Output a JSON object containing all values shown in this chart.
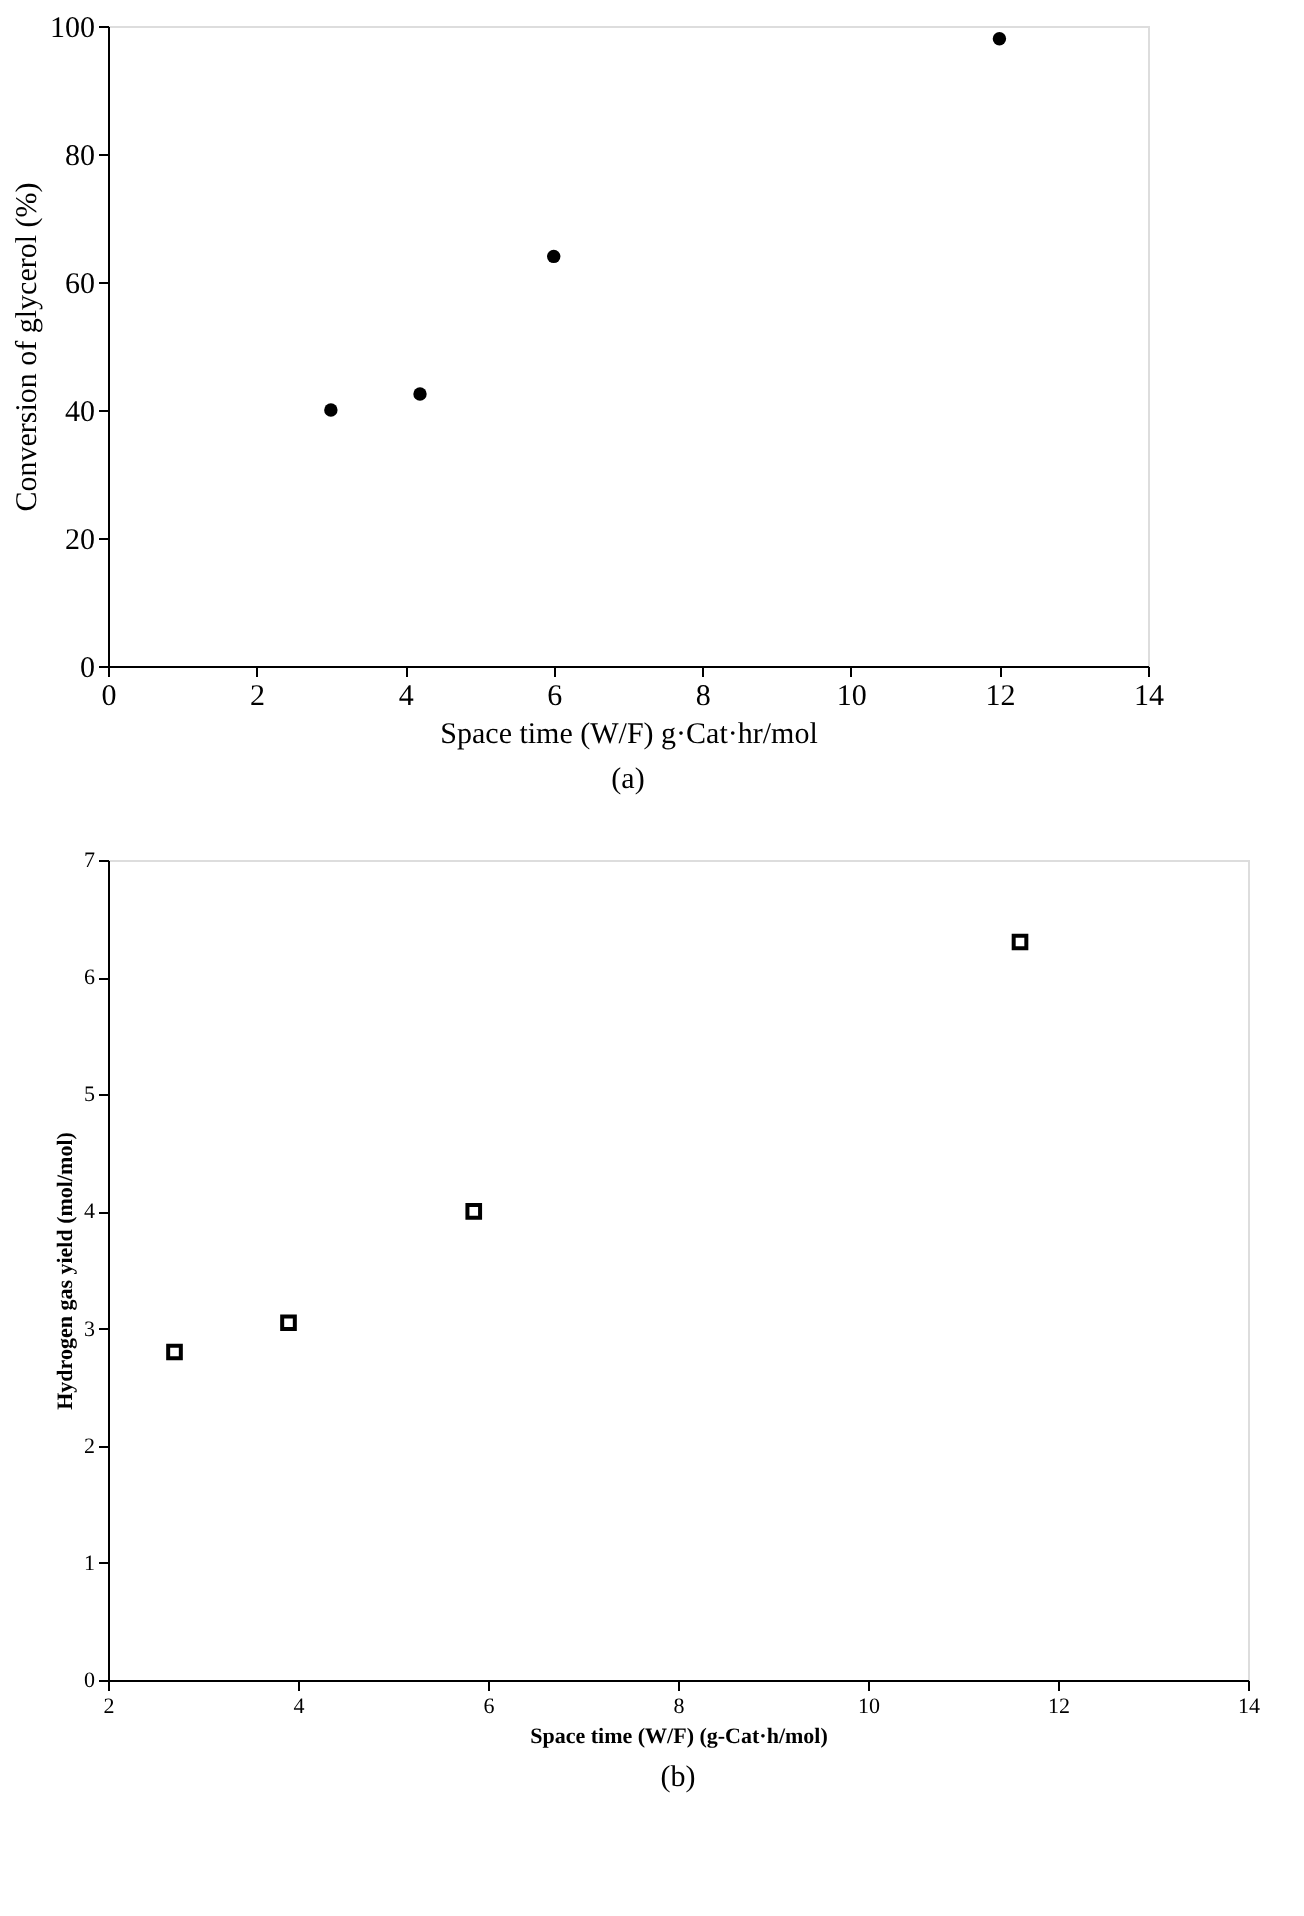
{
  "chart_data": [
    {
      "type": "scatter",
      "xlabel": "Space time (W/F) g·Cat·hr/mol",
      "ylabel": "Conversion of glycerol (%)",
      "x": [
        3,
        4.2,
        6,
        12
      ],
      "series": [
        {
          "color": "#000000",
          "values": [
            40,
            42.5,
            64,
            98
          ],
          "marker": "circle"
        }
      ],
      "xlim": [
        0,
        14
      ],
      "xticks": [
        0,
        2,
        4,
        6,
        8,
        10,
        12,
        14
      ],
      "ylim": [
        0,
        100
      ],
      "yticks": [
        0,
        20,
        40,
        60,
        80,
        100
      ],
      "grid": false,
      "annotations": [
        "(a)"
      ]
    },
    {
      "type": "scatter",
      "xlabel": "Space time (W/F) (g-Cat·h/mol)",
      "ylabel": "Hydrogen gas yield (mol/mol)",
      "x": [
        2.7,
        3.9,
        5.85,
        11.6
      ],
      "series": [
        {
          "color": "#000000",
          "values": [
            2.8,
            3.05,
            4.0,
            6.3
          ],
          "marker": "square"
        }
      ],
      "xlim": [
        2,
        14
      ],
      "xticks": [
        2,
        4,
        6,
        8,
        10,
        12,
        14
      ],
      "ylim": [
        0,
        7
      ],
      "yticks": [
        0,
        1,
        2,
        3,
        4,
        5,
        6,
        7
      ],
      "grid": false,
      "annotations": [
        "(b)"
      ]
    }
  ]
}
